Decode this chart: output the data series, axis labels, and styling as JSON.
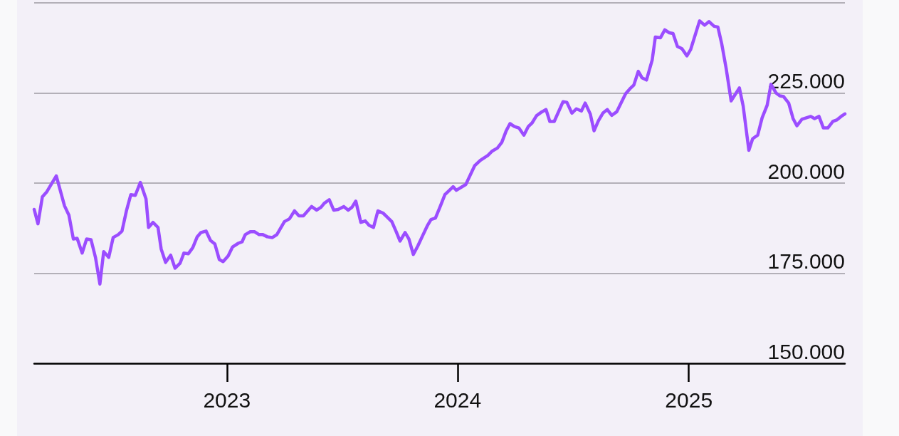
{
  "chart_data": {
    "type": "line",
    "x": [
      "2022-03-02",
      "2022-03-08",
      "2022-03-15",
      "2022-03-22",
      "2022-04-06",
      "2022-04-19",
      "2022-04-26",
      "2022-05-03",
      "2022-05-09",
      "2022-05-17",
      "2022-05-24",
      "2022-05-31",
      "2022-06-07",
      "2022-06-14",
      "2022-06-20",
      "2022-06-28",
      "2022-07-05",
      "2022-07-13",
      "2022-07-19",
      "2022-07-26",
      "2022-08-02",
      "2022-08-09",
      "2022-08-17",
      "2022-08-26",
      "2022-08-30",
      "2022-09-06",
      "2022-09-14",
      "2022-09-19",
      "2022-09-26",
      "2022-10-04",
      "2022-10-11",
      "2022-10-19",
      "2022-10-25",
      "2022-11-01",
      "2022-11-08",
      "2022-11-15",
      "2022-11-21",
      "2022-11-29",
      "2022-12-06",
      "2022-12-13",
      "2022-12-20",
      "2022-12-26",
      "2023-01-03",
      "2023-01-10",
      "2023-01-19",
      "2023-01-25",
      "2023-01-30",
      "2023-02-07",
      "2023-02-14",
      "2023-02-21",
      "2023-02-27",
      "2023-03-06",
      "2023-03-14",
      "2023-03-21",
      "2023-04-02",
      "2023-04-10",
      "2023-04-18",
      "2023-04-25",
      "2023-05-02",
      "2023-05-15",
      "2023-05-23",
      "2023-05-30",
      "2023-06-04",
      "2023-06-12",
      "2023-06-19",
      "2023-06-26",
      "2023-07-05",
      "2023-07-12",
      "2023-07-18",
      "2023-07-24",
      "2023-08-01",
      "2023-08-08",
      "2023-08-14",
      "2023-08-21",
      "2023-08-28",
      "2023-09-05",
      "2023-09-11",
      "2023-09-19",
      "2023-09-26",
      "2023-10-02",
      "2023-10-10",
      "2023-10-16",
      "2023-10-23",
      "2023-10-30",
      "2023-11-07",
      "2023-11-14",
      "2023-11-20",
      "2023-11-27",
      "2023-12-05",
      "2023-12-12",
      "2023-12-18",
      "2023-12-25",
      "2023-12-30",
      "2024-01-14",
      "2024-01-28",
      "2024-02-06",
      "2024-02-18",
      "2024-02-25",
      "2024-03-04",
      "2024-03-11",
      "2024-03-18",
      "2024-03-24",
      "2024-03-31",
      "2024-04-07",
      "2024-04-15",
      "2024-04-22",
      "2024-04-28",
      "2024-05-05",
      "2024-05-12",
      "2024-05-20",
      "2024-05-26",
      "2024-06-02",
      "2024-06-16",
      "2024-06-22",
      "2024-06-30",
      "2024-07-07",
      "2024-07-15",
      "2024-07-21",
      "2024-07-29",
      "2024-08-04",
      "2024-08-11",
      "2024-08-18",
      "2024-08-25",
      "2024-09-01",
      "2024-09-09",
      "2024-09-23",
      "2024-09-30",
      "2024-10-06",
      "2024-10-13",
      "2024-10-19",
      "2024-10-26",
      "2024-11-04",
      "2024-11-09",
      "2024-11-17",
      "2024-11-24",
      "2024-12-01",
      "2024-12-07",
      "2024-12-14",
      "2024-12-21",
      "2024-12-29",
      "2025-01-04",
      "2025-01-18",
      "2025-01-26",
      "2025-02-02",
      "2025-02-10",
      "2025-02-16",
      "2025-02-22",
      "2025-03-01",
      "2025-03-09",
      "2025-03-14",
      "2025-03-22",
      "2025-03-28",
      "2025-04-06",
      "2025-04-12",
      "2025-04-20",
      "2025-04-27",
      "2025-05-05",
      "2025-05-11",
      "2025-05-19",
      "2025-05-25",
      "2025-05-31",
      "2025-06-08",
      "2025-06-15",
      "2025-06-21",
      "2025-06-29",
      "2025-07-13",
      "2025-07-19",
      "2025-07-26",
      "2025-08-02",
      "2025-08-09",
      "2025-08-17",
      "2025-08-23",
      "2025-08-30",
      "2025-09-05"
    ],
    "series": [
      {
        "color": "#9b4dff",
        "values": [
          192700,
          188700,
          196200,
          197600,
          202000,
          193700,
          191100,
          184500,
          184700,
          180600,
          184500,
          184300,
          179400,
          172000,
          181000,
          179400,
          184900,
          185700,
          186700,
          192300,
          196800,
          196600,
          200200,
          195600,
          187700,
          189100,
          187700,
          181700,
          178000,
          180000,
          176400,
          177800,
          180600,
          180400,
          182100,
          185100,
          186300,
          186700,
          184100,
          183100,
          178800,
          178200,
          179800,
          182300,
          183300,
          183700,
          185700,
          186500,
          186500,
          185700,
          185700,
          185100,
          184900,
          185700,
          189300,
          190100,
          192300,
          190900,
          190900,
          193500,
          192500,
          193300,
          194400,
          195400,
          192500,
          192700,
          193500,
          192500,
          193300,
          195000,
          189100,
          189500,
          188300,
          187700,
          192300,
          191700,
          190700,
          189300,
          186500,
          183900,
          186300,
          184500,
          180200,
          182500,
          185500,
          188100,
          189900,
          190300,
          193700,
          196800,
          197800,
          199000,
          198000,
          199600,
          204800,
          206300,
          207700,
          208900,
          209700,
          211300,
          214500,
          216500,
          215700,
          215300,
          213300,
          215700,
          216700,
          218700,
          219600,
          220400,
          217100,
          217100,
          222600,
          222400,
          219400,
          220600,
          220000,
          222200,
          219200,
          214500,
          217300,
          219400,
          220400,
          218800,
          219800,
          224800,
          226200,
          227200,
          231000,
          229200,
          228600,
          234100,
          240500,
          240300,
          242500,
          241700,
          241500,
          237900,
          237300,
          235300,
          237100,
          245000,
          243800,
          244800,
          243500,
          243300,
          238700,
          231900,
          222800,
          224200,
          226400,
          221400,
          209100,
          212300,
          213300,
          218100,
          221600,
          227400,
          225000,
          224200,
          224000,
          222200,
          217900,
          215900,
          217700,
          218500,
          217900,
          218500,
          215300,
          215300,
          217100,
          217500,
          218500,
          219200
        ]
      }
    ],
    "xlim": [
      "2022-03-02",
      "2025-09-05"
    ],
    "xticks": [
      "2023",
      "2024",
      "2025"
    ],
    "ylim": [
      150000,
      250000
    ],
    "yticks": [
      {
        "value": 150000,
        "label": "150.000"
      },
      {
        "value": 175000,
        "label": "175.000"
      },
      {
        "value": 200000,
        "label": "200.000"
      },
      {
        "value": 225000,
        "label": "225.000"
      },
      {
        "value": 250000,
        "label": null
      }
    ],
    "grid": "y",
    "marker": "none",
    "line_style": "solid"
  }
}
